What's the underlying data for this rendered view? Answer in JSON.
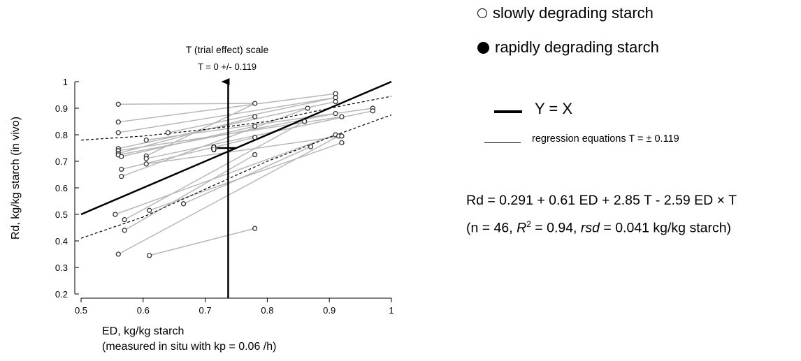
{
  "chart_data": {
    "type": "scatter",
    "xlabel": "ED, kg/kg starch",
    "xlabel_note": "(measured in situ with kp = 0.06 /h)",
    "ylabel": "Rd, kg/kg starch (in vivo)",
    "xlim": [
      0.5,
      1.0
    ],
    "ylim": [
      0.2,
      1.0
    ],
    "x_ticks": [
      "0.5",
      "0.6",
      "0.7",
      "0.8",
      "0.9",
      "1"
    ],
    "y_ticks": [
      "0.2",
      "0.3",
      "0.4",
      "0.5",
      "0.6",
      "0.7",
      "0.8",
      "0.9",
      "1"
    ],
    "grid": false,
    "legend": {
      "position": "right",
      "markers": [
        {
          "label": "slowly degrading starch",
          "marker": "open-circle"
        },
        {
          "label": "rapidly degrading starch",
          "marker": "filled-circle"
        }
      ],
      "lines": [
        {
          "label": "Y = X",
          "style": "thick"
        },
        {
          "label": "regression equations T = ± 0.119",
          "style": "thin"
        }
      ]
    },
    "equation": "Rd = 0.291 + 0.61 ED + 2.85 T - 2.59 ED × T",
    "equation_stats": {
      "open": "(n = 46, ",
      "r2_symbol": "R",
      "r2_sup": "2",
      "r2_value": " = 0.94, ",
      "rsd_symbol": "rsd",
      "rsd_value": " = 0.041 kg/kg starch)"
    },
    "t_axis": {
      "title": "T (trial effect) scale",
      "subtitle": "T = 0 +/- 0.119",
      "x": 0.737,
      "zero_label": "0",
      "zero_y": 0.75
    },
    "reference_lines": [
      {
        "name": "Y = X",
        "style": "solid-thick",
        "points": [
          [
            0.5,
            0.5
          ],
          [
            1.0,
            1.0
          ]
        ]
      },
      {
        "name": "T = +0.119",
        "style": "dashed",
        "points": [
          [
            0.5,
            0.78
          ],
          [
            0.6,
            0.795
          ],
          [
            0.7,
            0.82
          ],
          [
            0.8,
            0.85
          ],
          [
            0.9,
            0.9
          ],
          [
            1.0,
            0.945
          ]
        ]
      },
      {
        "name": "T = -0.119",
        "style": "dashed",
        "points": [
          [
            0.5,
            0.41
          ],
          [
            0.6,
            0.49
          ],
          [
            0.7,
            0.595
          ],
          [
            0.8,
            0.7
          ],
          [
            0.9,
            0.79
          ],
          [
            1.0,
            0.875
          ]
        ]
      }
    ],
    "points": [
      [
        0.56,
        0.915
      ],
      [
        0.56,
        0.848
      ],
      [
        0.56,
        0.808
      ],
      [
        0.56,
        0.748
      ],
      [
        0.56,
        0.74
      ],
      [
        0.56,
        0.73
      ],
      [
        0.56,
        0.724
      ],
      [
        0.565,
        0.718
      ],
      [
        0.565,
        0.67
      ],
      [
        0.565,
        0.643
      ],
      [
        0.555,
        0.5
      ],
      [
        0.57,
        0.48
      ],
      [
        0.57,
        0.44
      ],
      [
        0.56,
        0.35
      ],
      [
        0.605,
        0.78
      ],
      [
        0.605,
        0.72
      ],
      [
        0.605,
        0.71
      ],
      [
        0.605,
        0.69
      ],
      [
        0.61,
        0.515
      ],
      [
        0.61,
        0.345
      ],
      [
        0.64,
        0.808
      ],
      [
        0.665,
        0.54
      ],
      [
        0.78,
        0.918
      ],
      [
        0.78,
        0.868
      ],
      [
        0.78,
        0.832
      ],
      [
        0.78,
        0.79
      ],
      [
        0.78,
        0.725
      ],
      [
        0.78,
        0.447
      ],
      [
        0.865,
        0.9
      ],
      [
        0.86,
        0.85
      ],
      [
        0.87,
        0.755
      ],
      [
        0.91,
        0.955
      ],
      [
        0.91,
        0.94
      ],
      [
        0.91,
        0.925
      ],
      [
        0.91,
        0.88
      ],
      [
        0.91,
        0.8
      ],
      [
        0.915,
        0.795
      ],
      [
        0.92,
        0.868
      ],
      [
        0.92,
        0.795
      ],
      [
        0.92,
        0.77
      ],
      [
        0.97,
        0.9
      ],
      [
        0.97,
        0.89
      ]
    ],
    "segments": [
      [
        [
          0.56,
          0.915
        ],
        [
          0.78,
          0.918
        ]
      ],
      [
        [
          0.56,
          0.848
        ],
        [
          0.91,
          0.955
        ]
      ],
      [
        [
          0.56,
          0.808
        ],
        [
          0.91,
          0.94
        ]
      ],
      [
        [
          0.56,
          0.748
        ],
        [
          0.91,
          0.925
        ]
      ],
      [
        [
          0.56,
          0.74
        ],
        [
          0.92,
          0.868
        ]
      ],
      [
        [
          0.56,
          0.73
        ],
        [
          0.78,
          0.868
        ]
      ],
      [
        [
          0.56,
          0.724
        ],
        [
          0.91,
          0.88
        ]
      ],
      [
        [
          0.565,
          0.718
        ],
        [
          0.78,
          0.832
        ]
      ],
      [
        [
          0.565,
          0.67
        ],
        [
          0.78,
          0.79
        ]
      ],
      [
        [
          0.565,
          0.643
        ],
        [
          0.865,
          0.9
        ]
      ],
      [
        [
          0.555,
          0.5
        ],
        [
          0.91,
          0.8
        ]
      ],
      [
        [
          0.57,
          0.48
        ],
        [
          0.86,
          0.85
        ]
      ],
      [
        [
          0.57,
          0.44
        ],
        [
          0.78,
          0.725
        ]
      ],
      [
        [
          0.56,
          0.35
        ],
        [
          0.915,
          0.795
        ]
      ],
      [
        [
          0.605,
          0.78
        ],
        [
          0.97,
          0.9
        ]
      ],
      [
        [
          0.605,
          0.72
        ],
        [
          0.78,
          0.918
        ]
      ],
      [
        [
          0.605,
          0.71
        ],
        [
          0.97,
          0.89
        ]
      ],
      [
        [
          0.605,
          0.69
        ],
        [
          0.92,
          0.795
        ]
      ],
      [
        [
          0.61,
          0.515
        ],
        [
          0.92,
          0.77
        ]
      ],
      [
        [
          0.61,
          0.345
        ],
        [
          0.78,
          0.447
        ]
      ],
      [
        [
          0.64,
          0.808
        ],
        [
          0.91,
          0.94
        ]
      ],
      [
        [
          0.665,
          0.54
        ],
        [
          0.87,
          0.755
        ]
      ]
    ]
  }
}
